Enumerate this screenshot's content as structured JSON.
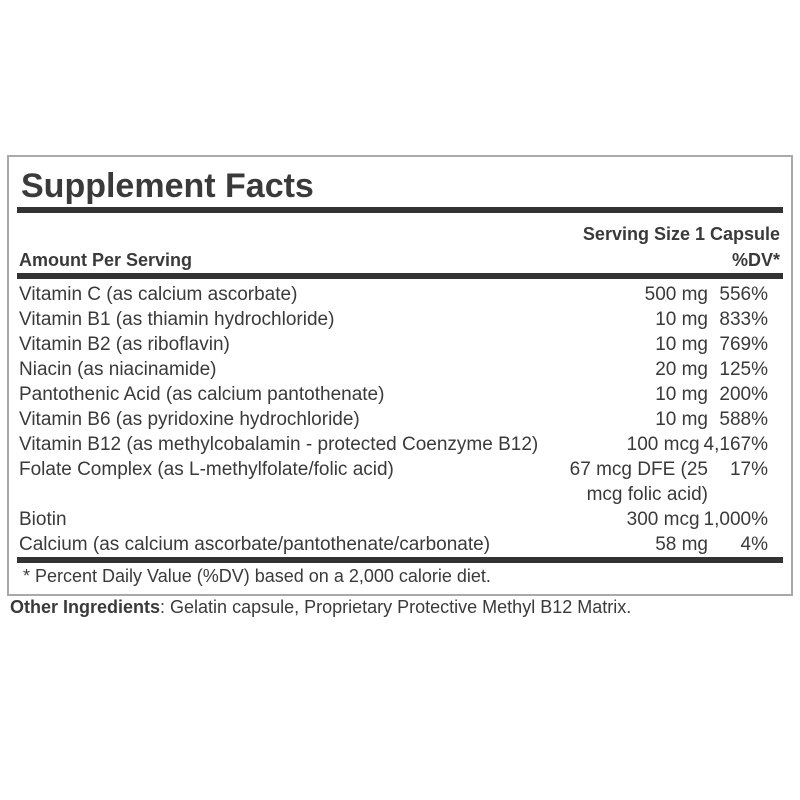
{
  "label": {
    "title": "Supplement Facts",
    "serving_size": "Serving Size 1 Capsule",
    "column_headers": {
      "left": "Amount Per Serving",
      "right": "%DV*"
    },
    "rows": [
      {
        "name": "Vitamin C (as calcium ascorbate)",
        "amount": "500 mg",
        "dv": "556%"
      },
      {
        "name": "Vitamin B1 (as thiamin hydrochloride)",
        "amount": "10 mg",
        "dv": "833%"
      },
      {
        "name": "Vitamin B2 (as riboflavin)",
        "amount": "10 mg",
        "dv": "769%"
      },
      {
        "name": "Niacin (as niacinamide)",
        "amount": "20 mg",
        "dv": "125%"
      },
      {
        "name": "Pantothenic Acid (as calcium pantothenate)",
        "amount": "10 mg",
        "dv": "200%"
      },
      {
        "name": "Vitamin B6 (as pyridoxine hydrochloride)",
        "amount": "10 mg",
        "dv": "588%"
      },
      {
        "name": "Vitamin B12 (as methylcobalamin - protected Coenzyme B12)",
        "amount": "100 mcg",
        "dv": "4,167%"
      },
      {
        "name": "Folate Complex (as L-methylfolate/folic acid)",
        "amount": "67 mcg DFE (25 mcg folic acid)",
        "dv": "17%",
        "wrap_amount": true
      },
      {
        "name": "Biotin",
        "amount": "300 mcg",
        "dv": "1,000%"
      },
      {
        "name": "Calcium (as calcium ascorbate/pantothenate/carbonate)",
        "amount": "58 mg",
        "dv": "4%"
      }
    ],
    "footnote": "* Percent Daily Value (%DV) based on a 2,000 calorie diet.",
    "colors": {
      "text": "#3a3a3a",
      "bar": "#333333",
      "border": "#a9a9a9",
      "background": "#ffffff"
    }
  },
  "other_ingredients": {
    "label": "Other Ingredients",
    "text": ": Gelatin capsule, Proprietary Protective Methyl B12 Matrix."
  }
}
